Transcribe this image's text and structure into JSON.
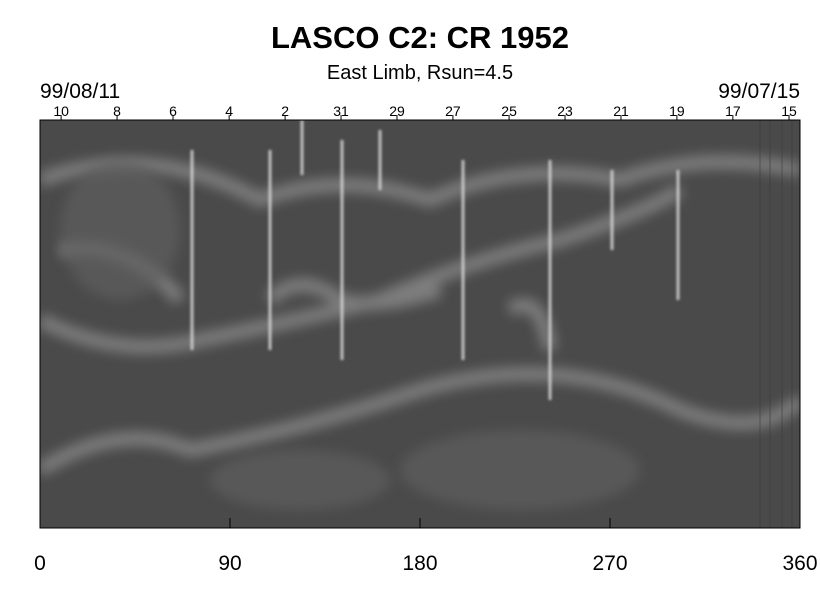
{
  "chart_data": {
    "type": "image",
    "title": "LASCO C2: CR 1952",
    "subtitle": "East Limb, Rsun=4.5",
    "start_date": "99/08/11",
    "end_date": "99/07/15",
    "xlim": [
      0,
      360
    ],
    "xticks": [
      0,
      90,
      180,
      270,
      360
    ],
    "x2lim": [
      0,
      360
    ],
    "x2ticks": [
      {
        "value": 10,
        "label": "10"
      },
      {
        "value": 36.5,
        "label": "8"
      },
      {
        "value": 63,
        "label": "6"
      },
      {
        "value": 89.6,
        "label": "4"
      },
      {
        "value": 116.1,
        "label": "2"
      },
      {
        "value": 142.6,
        "label": "31"
      },
      {
        "value": 169.1,
        "label": "29"
      },
      {
        "value": 195.6,
        "label": "27"
      },
      {
        "value": 222.2,
        "label": "25"
      },
      {
        "value": 248.7,
        "label": "23"
      },
      {
        "value": 275.2,
        "label": "21"
      },
      {
        "value": 301.7,
        "label": "19"
      },
      {
        "value": 328.2,
        "label": "17"
      },
      {
        "value": 354.8,
        "label": "15"
      }
    ]
  }
}
